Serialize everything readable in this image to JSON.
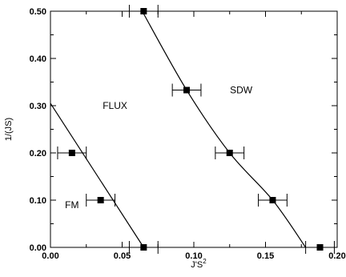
{
  "chart_data": {
    "type": "scatter",
    "title": "",
    "xlabel": "J'S",
    "xlabel_superscript": "2",
    "ylabel": "1/(JS)",
    "xlim": [
      0.0,
      0.2
    ],
    "ylim": [
      0.0,
      0.5
    ],
    "grid": false,
    "x_ticks": [
      0.0,
      0.05,
      0.1,
      0.15,
      0.2
    ],
    "x_tick_labels": [
      "0.00",
      "0.05",
      "0.10",
      "0.15",
      "0.20"
    ],
    "y_ticks": [
      0.0,
      0.1,
      0.2,
      0.3,
      0.4,
      0.5
    ],
    "y_tick_labels": [
      "0.00",
      "0.10",
      "0.20",
      "0.30",
      "0.40",
      "0.50"
    ],
    "series": [
      {
        "points": [
          {
            "x": 0.015,
            "y": 0.2,
            "xerr": 0.01
          },
          {
            "x": 0.035,
            "y": 0.1,
            "xerr": 0.01
          },
          {
            "x": 0.065,
            "y": 0.0,
            "xerr": 0.01
          }
        ],
        "curve": [
          [
            0.0,
            0.305
          ],
          [
            0.065,
            0.0
          ]
        ]
      },
      {
        "points": [
          {
            "x": 0.065,
            "y": 0.5,
            "xerr": 0.01
          },
          {
            "x": 0.095,
            "y": 0.333,
            "xerr": 0.01
          },
          {
            "x": 0.125,
            "y": 0.2,
            "xerr": 0.01
          },
          {
            "x": 0.155,
            "y": 0.1,
            "xerr": 0.01
          },
          {
            "x": 0.188,
            "y": 0.0,
            "xerr": 0.01
          }
        ],
        "curve": [
          [
            0.064,
            0.5
          ],
          [
            0.095,
            0.333
          ],
          [
            0.125,
            0.2
          ],
          [
            0.155,
            0.1
          ],
          [
            0.178,
            0.0
          ]
        ]
      }
    ],
    "annotations": [
      {
        "text": "FLUX",
        "x": 0.045,
        "y": 0.3
      },
      {
        "text": "SDW",
        "x": 0.133,
        "y": 0.333
      },
      {
        "text": "FM",
        "x": 0.015,
        "y": 0.09
      }
    ]
  }
}
